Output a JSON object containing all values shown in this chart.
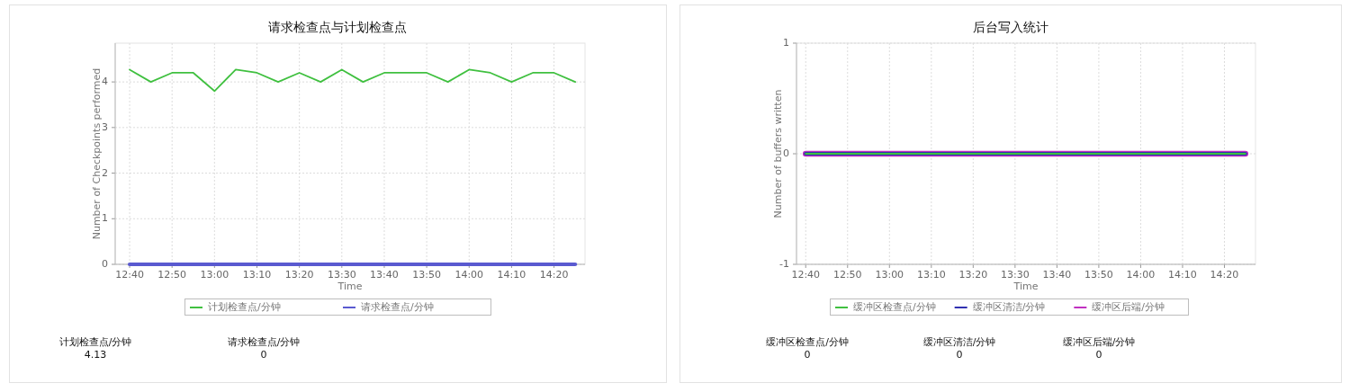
{
  "chart_data": [
    {
      "type": "line",
      "title": "请求检查点与计划检查点",
      "xlabel": "Time",
      "ylabel": "Number of Checkpoints performed",
      "x": [
        12.6667,
        12.75,
        12.8333,
        12.9167,
        13,
        13.0833,
        13.1667,
        13.25,
        13.3333,
        13.4167,
        13.5,
        13.5833,
        13.6667,
        13.75,
        13.8333,
        13.9167,
        14,
        14.0833,
        14.1667,
        14.25,
        14.3333,
        14.4167
      ],
      "xlim": [
        12.61,
        14.455
      ],
      "xticks": [
        {
          "value": 12.6667,
          "label": "12:40"
        },
        {
          "value": 12.8333,
          "label": "12:50"
        },
        {
          "value": 13,
          "label": "13:00"
        },
        {
          "value": 13.1667,
          "label": "13:10"
        },
        {
          "value": 13.3333,
          "label": "13:20"
        },
        {
          "value": 13.5,
          "label": "13:30"
        },
        {
          "value": 13.6667,
          "label": "13:40"
        },
        {
          "value": 13.8333,
          "label": "13:50"
        },
        {
          "value": 14,
          "label": "14:00"
        },
        {
          "value": 14.1667,
          "label": "14:10"
        },
        {
          "value": 14.3333,
          "label": "14:20"
        }
      ],
      "ylim": [
        0,
        4.85
      ],
      "yticks": [
        0,
        1,
        2,
        3,
        4
      ],
      "series": [
        {
          "name": "计划检查点/分钟",
          "color": "#40c040",
          "values": [
            4.27,
            4.0,
            4.2,
            4.2,
            3.8,
            4.27,
            4.2,
            4.0,
            4.2,
            4.0,
            4.27,
            4.0,
            4.2,
            4.2,
            4.2,
            4.0,
            4.27,
            4.2,
            4.0,
            4.2,
            4.2,
            4.0
          ]
        },
        {
          "name": "请求检查点/分钟",
          "color": "#5a5ad0",
          "values": [
            0,
            0,
            0,
            0,
            0,
            0,
            0,
            0,
            0,
            0,
            0,
            0,
            0,
            0,
            0,
            0,
            0,
            0,
            0,
            0,
            0,
            0
          ]
        }
      ],
      "grid": true,
      "legend": "bottom",
      "line_style": "solid",
      "annotations": [
        "计划检查点/分钟",
        "4.13",
        "请求检查点/分钟",
        "0"
      ]
    },
    {
      "type": "line",
      "title": "后台写入统计",
      "xlabel": "Time",
      "ylabel": "Number of buffers written",
      "x": [
        12.6667,
        12.75,
        12.8333,
        12.9167,
        13,
        13.0833,
        13.1667,
        13.25,
        13.3333,
        13.4167,
        13.5,
        13.5833,
        13.6667,
        13.75,
        13.8333,
        13.9167,
        14,
        14.0833,
        14.1667,
        14.25,
        14.3333,
        14.4167
      ],
      "xlim": [
        12.63,
        14.457
      ],
      "xticks": [
        {
          "value": 12.6667,
          "label": "12:40"
        },
        {
          "value": 12.8333,
          "label": "12:50"
        },
        {
          "value": 13,
          "label": "13:00"
        },
        {
          "value": 13.1667,
          "label": "13:10"
        },
        {
          "value": 13.3333,
          "label": "13:20"
        },
        {
          "value": 13.5,
          "label": "13:30"
        },
        {
          "value": 13.6667,
          "label": "13:40"
        },
        {
          "value": 13.8333,
          "label": "13:50"
        },
        {
          "value": 14,
          "label": "14:00"
        },
        {
          "value": 14.1667,
          "label": "14:10"
        },
        {
          "value": 14.3333,
          "label": "14:20"
        }
      ],
      "ylim": [
        -1,
        1
      ],
      "yticks": [
        -1,
        0,
        1
      ],
      "series": [
        {
          "name": "缓冲区检查点/分钟",
          "color": "#40c040",
          "values": [
            0,
            0,
            0,
            0,
            0,
            0,
            0,
            0,
            0,
            0,
            0,
            0,
            0,
            0,
            0,
            0,
            0,
            0,
            0,
            0,
            0,
            0
          ]
        },
        {
          "name": "缓冲区清洁/分钟",
          "color": "#3030b0",
          "values": [
            0,
            0,
            0,
            0,
            0,
            0,
            0,
            0,
            0,
            0,
            0,
            0,
            0,
            0,
            0,
            0,
            0,
            0,
            0,
            0,
            0,
            0
          ]
        },
        {
          "name": "缓冲区后端/分钟",
          "color": "#c030c0",
          "values": [
            0,
            0,
            0,
            0,
            0,
            0,
            0,
            0,
            0,
            0,
            0,
            0,
            0,
            0,
            0,
            0,
            0,
            0,
            0,
            0,
            0,
            0
          ]
        }
      ],
      "grid": true,
      "legend": "bottom",
      "line_style": "solid",
      "annotations": [
        "缓冲区检查点/分钟",
        "0",
        "缓冲区清洁/分钟",
        "0",
        "缓冲区后端/分钟",
        "0"
      ]
    }
  ]
}
